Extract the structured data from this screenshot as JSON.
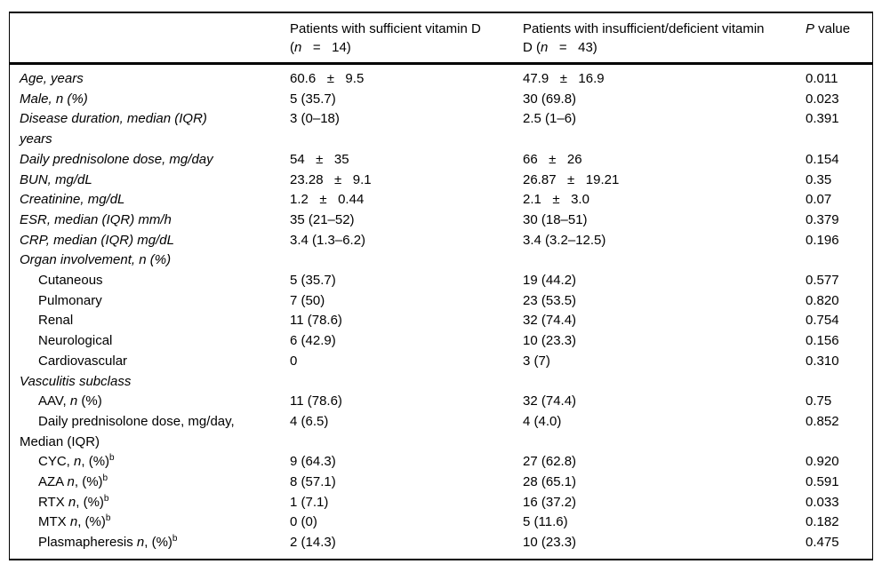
{
  "table": {
    "columns": [
      {
        "name": "row-label-header",
        "lines": [
          ""
        ]
      },
      {
        "name": "sufficient-header",
        "lines": [
          "Patients with sufficient vitamin D",
          "(*n*   =   14)"
        ]
      },
      {
        "name": "insufficient-header",
        "lines": [
          "Patients with insufficient/deficient vitamin",
          "D (*n*   =   43)"
        ]
      },
      {
        "name": "pvalue-header",
        "lines": [
          "*P* value"
        ]
      }
    ],
    "rows": [
      {
        "label": "Age, years",
        "italic": true,
        "indent": false,
        "sufficient": "60.6   ±   9.5",
        "insufficient": "47.9   ±   16.9",
        "p": "0.011"
      },
      {
        "label": "Male, n (%)",
        "italic": true,
        "indent": false,
        "sufficient": "5 (35.7)",
        "insufficient": "30 (69.8)",
        "p": "0.023"
      },
      {
        "label": "Disease duration, median (IQR)\nyears",
        "italic": true,
        "indent": false,
        "sufficient": "3 (0–18)",
        "insufficient": "2.5 (1–6)",
        "p": "0.391"
      },
      {
        "label": "Daily prednisolone dose, mg/day",
        "italic": true,
        "indent": false,
        "sufficient": "54   ±   35",
        "insufficient": "66   ±   26",
        "p": "0.154"
      },
      {
        "label": "BUN, mg/dL",
        "italic": true,
        "indent": false,
        "sufficient": "23.28   ±   9.1",
        "insufficient": "26.87   ±   19.21",
        "p": "0.35"
      },
      {
        "label": "Creatinine, mg/dL",
        "italic": true,
        "indent": false,
        "sufficient": "1.2   ±   0.44",
        "insufficient": "2.1   ±   3.0",
        "p": "0.07"
      },
      {
        "label": "ESR, median (IQR) mm/h",
        "italic": true,
        "indent": false,
        "sufficient": "35 (21–52)",
        "insufficient": "30 (18–51)",
        "p": "0.379"
      },
      {
        "label": "CRP, median (IQR) mg/dL",
        "italic": true,
        "indent": false,
        "sufficient": "3.4 (1.3–6.2)",
        "insufficient": "3.4 (3.2–12.5)",
        "p": "0.196"
      },
      {
        "label": "Organ involvement, n (%)",
        "italic": true,
        "indent": false,
        "sufficient": "",
        "insufficient": "",
        "p": ""
      },
      {
        "label": "Cutaneous",
        "italic": false,
        "indent": true,
        "sufficient": "5 (35.7)",
        "insufficient": "19 (44.2)",
        "p": "0.577"
      },
      {
        "label": "Pulmonary",
        "italic": false,
        "indent": true,
        "sufficient": "7 (50)",
        "insufficient": "23 (53.5)",
        "p": "0.820"
      },
      {
        "label": "Renal",
        "italic": false,
        "indent": true,
        "sufficient": "11 (78.6)",
        "insufficient": "32 (74.4)",
        "p": "0.754"
      },
      {
        "label": "Neurological",
        "italic": false,
        "indent": true,
        "sufficient": "6 (42.9)",
        "insufficient": "10 (23.3)",
        "p": "0.156"
      },
      {
        "label": "Cardiovascular",
        "italic": false,
        "indent": true,
        "sufficient": "0",
        "insufficient": "3 (7)",
        "p": "0.310"
      },
      {
        "label": "Vasculitis subclass",
        "italic": true,
        "indent": false,
        "sufficient": "",
        "insufficient": "",
        "p": ""
      },
      {
        "label": "AAV, *n* (%)",
        "italic": false,
        "indent": true,
        "sufficient": "11 (78.6)",
        "insufficient": "32 (74.4)",
        "p": "0.75"
      },
      {
        "label": "Daily prednisolone dose, mg/day,\nMedian (IQR)",
        "italic": false,
        "indent": true,
        "sufficient": "4 (6.5)",
        "insufficient": "4 (4.0)",
        "p": "0.852"
      },
      {
        "label": "CYC, *n*, (%)^b",
        "italic": false,
        "indent": true,
        "sufficient": "9 (64.3)",
        "insufficient": "27 (62.8)",
        "p": "0.920"
      },
      {
        "label": "AZA *n*, (%)^b",
        "italic": false,
        "indent": true,
        "sufficient": "8 (57.1)",
        "insufficient": "28 (65.1)",
        "p": "0.591"
      },
      {
        "label": "RTX *n*, (%)^b",
        "italic": false,
        "indent": true,
        "sufficient": "1 (7.1)",
        "insufficient": "16 (37.2)",
        "p": "0.033"
      },
      {
        "label": "MTX *n*, (%)^b",
        "italic": false,
        "indent": true,
        "sufficient": "0 (0)",
        "insufficient": "5 (11.6)",
        "p": "0.182"
      },
      {
        "label": "Plasmapheresis *n*, (%)^b",
        "italic": false,
        "indent": true,
        "sufficient": "2 (14.3)",
        "insufficient": "10 (23.3)",
        "p": "0.475"
      }
    ]
  }
}
